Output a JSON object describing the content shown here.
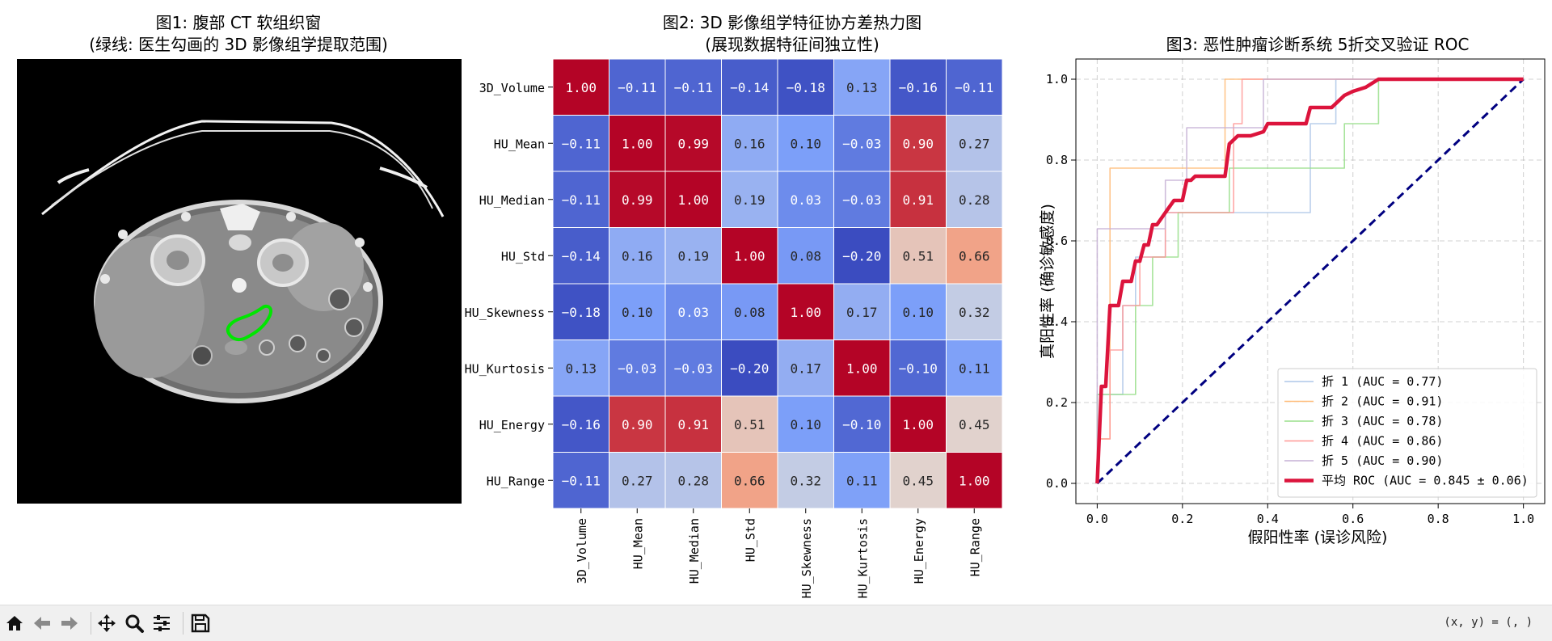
{
  "window": {
    "toolbar": {
      "home_icon": "home-icon",
      "back_icon": "back-arrow-icon",
      "forward_icon": "forward-arrow-icon",
      "pan_icon": "pan-move-icon",
      "zoom_icon": "zoom-magnifier-icon",
      "configure_icon": "configure-subplots-icon",
      "save_icon": "save-floppy-icon",
      "coord_readout": "(x, y) = (, )"
    }
  },
  "panel1": {
    "title_line1": "图1: 腹部 CT 软组织窗",
    "title_line2": "(绿线: 医生勾画的 3D 影像组学提取范围)",
    "contour_color": "#00e600"
  },
  "chart_data": [
    {
      "type": "heatmap",
      "title_line1": "图2: 3D 影像组学特征协方差热力图",
      "title_line2": "(展现数据特征间独立性)",
      "colormap": "coolwarm",
      "labels": [
        "3D_Volume",
        "HU_Mean",
        "HU_Median",
        "HU_Std",
        "HU_Skewness",
        "HU_Kurtosis",
        "HU_Energy",
        "HU_Range"
      ],
      "values": [
        [
          1.0,
          -0.11,
          -0.11,
          -0.14,
          -0.18,
          0.13,
          -0.16,
          -0.11
        ],
        [
          -0.11,
          1.0,
          0.99,
          0.16,
          0.1,
          -0.03,
          0.9,
          0.27
        ],
        [
          -0.11,
          0.99,
          1.0,
          0.19,
          0.03,
          -0.03,
          0.91,
          0.28
        ],
        [
          -0.14,
          0.16,
          0.19,
          1.0,
          0.08,
          -0.2,
          0.51,
          0.66
        ],
        [
          -0.18,
          0.1,
          0.03,
          0.08,
          1.0,
          0.17,
          0.1,
          0.32
        ],
        [
          0.13,
          -0.03,
          -0.03,
          -0.2,
          0.17,
          1.0,
          -0.1,
          0.11
        ],
        [
          -0.16,
          0.9,
          0.91,
          0.51,
          0.1,
          -0.1,
          1.0,
          0.45
        ],
        [
          -0.11,
          0.27,
          0.28,
          0.66,
          0.32,
          0.11,
          0.45,
          1.0
        ]
      ]
    },
    {
      "type": "line",
      "title": "图3: 恶性肿瘤诊断系统 5折交叉验证 ROC",
      "xlabel": "假阳性率 (误诊风险)",
      "ylabel": "真阳性率 (确诊敏感度)",
      "xlim": [
        -0.05,
        1.05
      ],
      "ylim": [
        -0.05,
        1.05
      ],
      "xticks": [
        0.0,
        0.2,
        0.4,
        0.6,
        0.8,
        1.0
      ],
      "yticks": [
        0.0,
        0.2,
        0.4,
        0.6,
        0.8,
        1.0
      ],
      "grid": true,
      "legend_position": "lower-right",
      "diagonal": {
        "x": [
          0,
          1
        ],
        "y": [
          0,
          1
        ],
        "color": "#000080"
      },
      "series": [
        {
          "name": "折 1 (AUC = 0.77)",
          "color": "#aec7e8",
          "x": [
            0,
            0,
            0.06,
            0.06,
            0.09,
            0.09,
            0.16,
            0.16,
            0.5,
            0.5,
            0.56,
            0.56,
            0.64,
            0.64,
            1.0
          ],
          "y": [
            0,
            0.22,
            0.22,
            0.44,
            0.44,
            0.56,
            0.56,
            0.67,
            0.67,
            0.89,
            0.89,
            1.0,
            1.0,
            1.0,
            1.0
          ]
        },
        {
          "name": "折 2 (AUC = 0.91)",
          "color": "#ffbb78",
          "x": [
            0,
            0,
            0.03,
            0.03,
            0.3,
            0.3,
            1.0
          ],
          "y": [
            0,
            0.11,
            0.11,
            0.78,
            0.78,
            1.0,
            1.0
          ]
        },
        {
          "name": "折 3 (AUC = 0.78)",
          "color": "#98df8a",
          "x": [
            0,
            0,
            0.09,
            0.09,
            0.13,
            0.13,
            0.19,
            0.19,
            0.31,
            0.31,
            0.58,
            0.58,
            0.66,
            0.66,
            1.0
          ],
          "y": [
            0,
            0.22,
            0.22,
            0.44,
            0.44,
            0.56,
            0.56,
            0.67,
            0.67,
            0.78,
            0.78,
            0.89,
            0.89,
            1.0,
            1.0
          ]
        },
        {
          "name": "折 4 (AUC = 0.86)",
          "color": "#ff9896",
          "x": [
            0,
            0,
            0.03,
            0.03,
            0.06,
            0.06,
            0.1,
            0.1,
            0.16,
            0.16,
            0.32,
            0.32,
            0.34,
            0.34,
            1.0
          ],
          "y": [
            0,
            0.11,
            0.11,
            0.33,
            0.33,
            0.44,
            0.44,
            0.56,
            0.56,
            0.67,
            0.67,
            0.89,
            0.89,
            1.0,
            1.0
          ]
        },
        {
          "name": "折 5 (AUC = 0.90)",
          "color": "#c5b0d5",
          "x": [
            0,
            0,
            0.03,
            0.03,
            0.16,
            0.16,
            0.21,
            0.21,
            0.34,
            0.34,
            0.39,
            0.39,
            1.0
          ],
          "y": [
            0,
            0.63,
            0.63,
            0.63,
            0.63,
            0.75,
            0.75,
            0.88,
            0.88,
            0.88,
            0.88,
            1.0,
            1.0
          ]
        },
        {
          "name": "平均 ROC (AUC = 0.845 ± 0.06)",
          "color": "#dc143c",
          "mean": true,
          "x": [
            0.0,
            0.01,
            0.02,
            0.03,
            0.05,
            0.06,
            0.08,
            0.09,
            0.1,
            0.11,
            0.12,
            0.13,
            0.14,
            0.16,
            0.18,
            0.2,
            0.21,
            0.22,
            0.23,
            0.3,
            0.31,
            0.33,
            0.36,
            0.39,
            0.4,
            0.43,
            0.46,
            0.49,
            0.5,
            0.55,
            0.58,
            0.6,
            0.63,
            0.66,
            0.7,
            0.8,
            0.9,
            1.0
          ],
          "y": [
            0.0,
            0.24,
            0.24,
            0.44,
            0.44,
            0.5,
            0.5,
            0.55,
            0.55,
            0.59,
            0.59,
            0.64,
            0.64,
            0.67,
            0.7,
            0.7,
            0.75,
            0.75,
            0.76,
            0.76,
            0.84,
            0.86,
            0.86,
            0.87,
            0.89,
            0.89,
            0.89,
            0.89,
            0.93,
            0.93,
            0.96,
            0.97,
            0.98,
            1.0,
            1.0,
            1.0,
            1.0,
            1.0
          ]
        }
      ]
    }
  ]
}
